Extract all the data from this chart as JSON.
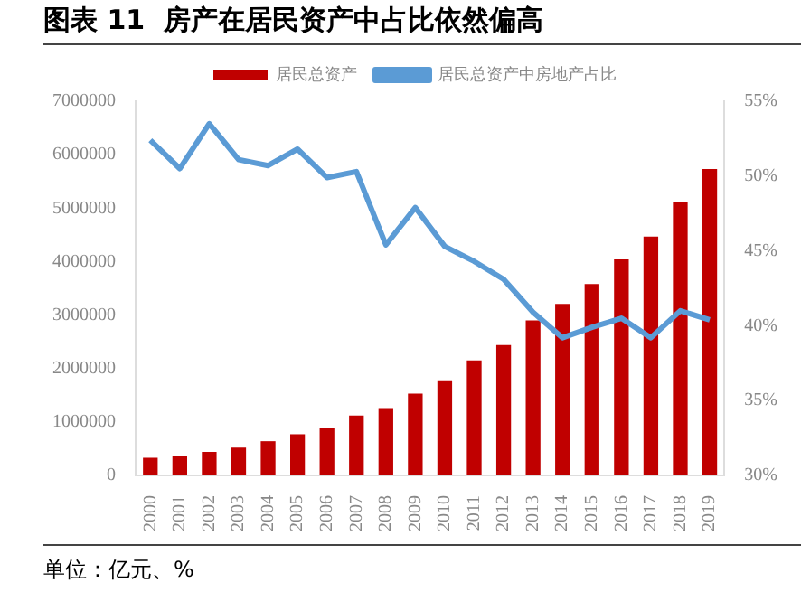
{
  "chart_data": {
    "type": "bar",
    "title": "图表 11  房产在居民资产中占比依然偏高",
    "categories": [
      "2000",
      "2001",
      "2002",
      "2003",
      "2004",
      "2005",
      "2006",
      "2007",
      "2008",
      "2009",
      "2010",
      "2011",
      "2012",
      "2013",
      "2014",
      "2015",
      "2016",
      "2017",
      "2018",
      "2019"
    ],
    "series": [
      {
        "name": "居民总资产",
        "color": "#c00000",
        "values": [
          330000,
          360000,
          440000,
          520000,
          640000,
          770000,
          890000,
          1120000,
          1260000,
          1530000,
          1780000,
          2150000,
          2440000,
          2900000,
          3210000,
          3580000,
          4040000,
          4470000,
          5110000,
          5730000
        ]
      },
      {
        "name": "居民总资产中房地产占比",
        "type": "line",
        "axis": "y2",
        "color": "#5b9bd5",
        "marker": "none",
        "values": [
          52.4,
          50.5,
          53.5,
          51.1,
          50.7,
          51.8,
          49.9,
          50.3,
          45.4,
          47.9,
          45.3,
          44.3,
          43.1,
          40.9,
          39.2,
          39.9,
          40.5,
          39.2,
          41.0,
          40.4
        ]
      }
    ],
    "ylim": [
      0,
      7000000
    ],
    "yticks": [
      0,
      1000000,
      2000000,
      3000000,
      4000000,
      5000000,
      6000000,
      7000000
    ],
    "y2lim": [
      30,
      55
    ],
    "y2ticks": [
      {
        "value": 30,
        "label": "30%"
      },
      {
        "value": 35,
        "label": "35%"
      },
      {
        "value": 40,
        "label": "40%"
      },
      {
        "value": 45,
        "label": "45%"
      },
      {
        "value": 50,
        "label": "50%"
      },
      {
        "value": 55,
        "label": "55%"
      }
    ],
    "legend": "top",
    "grid": false,
    "annotations": [
      "单位：亿元、%"
    ]
  }
}
